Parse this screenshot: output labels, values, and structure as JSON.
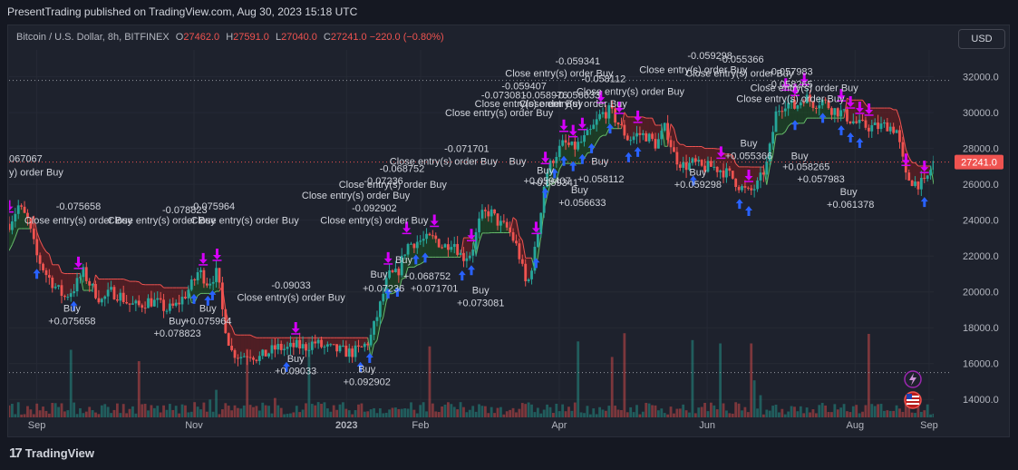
{
  "header": {
    "publish_line": "PresentTrading published on TradingView.com, Aug 30, 2023 15:18 UTC"
  },
  "legend": {
    "symbol": "Bitcoin / U.S. Dollar, 8h, BITFINEX",
    "o_key": "O",
    "o_val": "27462.0",
    "h_key": "H",
    "h_val": "27591.0",
    "l_key": "L",
    "l_val": "27040.0",
    "c_key": "C",
    "c_val": "27241.0",
    "change": "−220.0 (−0.80%)"
  },
  "toolbar": {
    "currency_label": "USD"
  },
  "footer": {
    "brand": "TradingView",
    "logo": "17"
  },
  "colors": {
    "up": "#26a69a",
    "down": "#ef5350",
    "bg": "#1e222d",
    "bull_band": "#1b5e20",
    "bear_band": "#8b1a1a",
    "signal": "#d500f9",
    "buy": "#2962ff"
  },
  "chart_data": {
    "type": "candlestick",
    "ylim": [
      13000,
      33500
    ],
    "y_ticks": [
      "32000.0",
      "30000.0",
      "28000.0",
      "26000.0",
      "24000.0",
      "22000.0",
      "20000.0",
      "18000.0",
      "16000.0",
      "14000.0"
    ],
    "x_labels": [
      {
        "label": "Sep",
        "t": 0.03
      },
      {
        "label": "Nov",
        "t": 0.2
      },
      {
        "label": "2023",
        "t": 0.365
      },
      {
        "label": "Feb",
        "t": 0.445
      },
      {
        "label": "Apr",
        "t": 0.595
      },
      {
        "label": "Jun",
        "t": 0.755
      },
      {
        "label": "Aug",
        "t": 0.915
      },
      {
        "label": "Sep",
        "t": 0.995
      }
    ],
    "last_price": "27241.0",
    "reference_lines": [
      31800,
      27241,
      15500
    ],
    "price_path": [
      [
        0.0,
        23800
      ],
      [
        0.01,
        24800
      ],
      [
        0.02,
        24000
      ],
      [
        0.03,
        22000
      ],
      [
        0.04,
        21000
      ],
      [
        0.05,
        20300
      ],
      [
        0.06,
        19700
      ],
      [
        0.07,
        20200
      ],
      [
        0.08,
        21100
      ],
      [
        0.09,
        20200
      ],
      [
        0.1,
        19500
      ],
      [
        0.11,
        20000
      ],
      [
        0.12,
        19800
      ],
      [
        0.13,
        19300
      ],
      [
        0.14,
        19200
      ],
      [
        0.15,
        19500
      ],
      [
        0.16,
        19400
      ],
      [
        0.17,
        19000
      ],
      [
        0.18,
        19200
      ],
      [
        0.19,
        19800
      ],
      [
        0.2,
        20600
      ],
      [
        0.205,
        21200
      ],
      [
        0.215,
        20500
      ],
      [
        0.225,
        21100
      ],
      [
        0.232,
        18500
      ],
      [
        0.24,
        16700
      ],
      [
        0.25,
        16400
      ],
      [
        0.26,
        16600
      ],
      [
        0.27,
        16300
      ],
      [
        0.28,
        16600
      ],
      [
        0.29,
        16900
      ],
      [
        0.3,
        16800
      ],
      [
        0.31,
        17000
      ],
      [
        0.32,
        16900
      ],
      [
        0.33,
        17200
      ],
      [
        0.34,
        16900
      ],
      [
        0.35,
        16800
      ],
      [
        0.36,
        16700
      ],
      [
        0.37,
        16600
      ],
      [
        0.38,
        16800
      ],
      [
        0.39,
        17300
      ],
      [
        0.4,
        19000
      ],
      [
        0.41,
        20900
      ],
      [
        0.42,
        21000
      ],
      [
        0.43,
        22600
      ],
      [
        0.44,
        22800
      ],
      [
        0.45,
        22900
      ],
      [
        0.46,
        23000
      ],
      [
        0.47,
        22500
      ],
      [
        0.48,
        22900
      ],
      [
        0.49,
        21900
      ],
      [
        0.5,
        22200
      ],
      [
        0.51,
        24200
      ],
      [
        0.52,
        24500
      ],
      [
        0.53,
        23800
      ],
      [
        0.54,
        23500
      ],
      [
        0.55,
        22400
      ],
      [
        0.56,
        20200
      ],
      [
        0.57,
        22600
      ],
      [
        0.58,
        26500
      ],
      [
        0.59,
        27600
      ],
      [
        0.6,
        28300
      ],
      [
        0.61,
        28000
      ],
      [
        0.62,
        28400
      ],
      [
        0.63,
        29000
      ],
      [
        0.64,
        29900
      ],
      [
        0.65,
        30100
      ],
      [
        0.66,
        29300
      ],
      [
        0.67,
        28500
      ],
      [
        0.68,
        28800
      ],
      [
        0.69,
        28700
      ],
      [
        0.7,
        28200
      ],
      [
        0.71,
        29200
      ],
      [
        0.72,
        27500
      ],
      [
        0.73,
        27000
      ],
      [
        0.74,
        27200
      ],
      [
        0.75,
        26900
      ],
      [
        0.76,
        27000
      ],
      [
        0.77,
        26800
      ],
      [
        0.78,
        26500
      ],
      [
        0.79,
        25900
      ],
      [
        0.8,
        25500
      ],
      [
        0.81,
        26000
      ],
      [
        0.82,
        27200
      ],
      [
        0.83,
        30100
      ],
      [
        0.84,
        30600
      ],
      [
        0.85,
        30300
      ],
      [
        0.86,
        30900
      ],
      [
        0.87,
        30500
      ],
      [
        0.88,
        30700
      ],
      [
        0.89,
        30200
      ],
      [
        0.9,
        30000
      ],
      [
        0.91,
        29600
      ],
      [
        0.92,
        29300
      ],
      [
        0.93,
        29200
      ],
      [
        0.94,
        29200
      ],
      [
        0.95,
        29300
      ],
      [
        0.96,
        29000
      ],
      [
        0.97,
        26400
      ],
      [
        0.98,
        26100
      ],
      [
        0.99,
        26000
      ],
      [
        1.0,
        27241
      ]
    ],
    "annotations": [
      {
        "text": "067067",
        "t": 0.0,
        "y": 27250,
        "anchor": "start"
      },
      {
        "text": "y) order Buy",
        "t": 0.0,
        "y": 26500,
        "anchor": "start"
      },
      {
        "text": "-0.075658",
        "t": 0.075,
        "y": 24600
      },
      {
        "text": "Close entry(s) order Buy",
        "t": 0.075,
        "y": 23800
      },
      {
        "text": "-0.078823",
        "t": 0.19,
        "y": 24400
      },
      {
        "text": "-0.075964",
        "t": 0.22,
        "y": 24600
      },
      {
        "text": "Close entry(s) order Buy",
        "t": 0.165,
        "y": 23800
      },
      {
        "text": "Close entry(s) order Buy",
        "t": 0.255,
        "y": 23800
      },
      {
        "text": "Buy",
        "t": 0.068,
        "y": 18900
      },
      {
        "text": "+0.075658",
        "t": 0.068,
        "y": 18200
      },
      {
        "text": "Buy",
        "t": 0.215,
        "y": 18900
      },
      {
        "text": "Buy",
        "t": 0.182,
        "y": 18200
      },
      {
        "text": "+0.075964",
        "t": 0.215,
        "y": 18200
      },
      {
        "text": "+0.078823",
        "t": 0.182,
        "y": 17500
      },
      {
        "text": "-0.09033",
        "t": 0.305,
        "y": 20200
      },
      {
        "text": "Close entry(s) order Buy",
        "t": 0.305,
        "y": 19500
      },
      {
        "text": "Buy",
        "t": 0.31,
        "y": 16100
      },
      {
        "text": "+0.09033",
        "t": 0.31,
        "y": 15400
      },
      {
        "text": "Buy",
        "t": 0.387,
        "y": 15500
      },
      {
        "text": "+0.092902",
        "t": 0.387,
        "y": 14800
      },
      {
        "text": "-0.071701",
        "t": 0.495,
        "y": 27800
      },
      {
        "text": "Close entry(s) order Buy",
        "t": 0.47,
        "y": 27100
      },
      {
        "text": "-0.068752",
        "t": 0.425,
        "y": 26700
      },
      {
        "text": "-0.07236",
        "t": 0.405,
        "y": 26000
      },
      {
        "text": "Close entry(s) order Buy",
        "t": 0.415,
        "y": 25800
      },
      {
        "text": "Close entry(s) order Buy",
        "t": 0.375,
        "y": 25200
      },
      {
        "text": "-0.092902",
        "t": 0.395,
        "y": 24500
      },
      {
        "text": "Close entry(s) order Buy",
        "t": 0.395,
        "y": 23800
      },
      {
        "text": "Buy",
        "t": 0.427,
        "y": 21600
      },
      {
        "text": "Buy",
        "t": 0.4,
        "y": 20800
      },
      {
        "text": "+0.068752",
        "t": 0.452,
        "y": 20700
      },
      {
        "text": "+0.07236",
        "t": 0.405,
        "y": 20000
      },
      {
        "text": "+0.071701",
        "t": 0.46,
        "y": 20000
      },
      {
        "text": "Buy",
        "t": 0.51,
        "y": 19900
      },
      {
        "text": "+0.073081",
        "t": 0.51,
        "y": 19200
      },
      {
        "text": "-0.059341",
        "t": 0.615,
        "y": 32700
      },
      {
        "text": "Close entry(s) order Buy",
        "t": 0.595,
        "y": 32000
      },
      {
        "text": "-0.058112",
        "t": 0.643,
        "y": 31700
      },
      {
        "text": "-0.059407",
        "t": 0.557,
        "y": 31300
      },
      {
        "text": "-0.073081",
        "t": 0.535,
        "y": 30800
      },
      {
        "text": "-0.058976",
        "t": 0.58,
        "y": 30800
      },
      {
        "text": "-0.056633",
        "t": 0.615,
        "y": 30800
      },
      {
        "text": "Close entry(s) order Buy",
        "t": 0.672,
        "y": 31000
      },
      {
        "text": "Close entry(s) order Buy",
        "t": 0.562,
        "y": 30300
      },
      {
        "text": "Close entry(s) order Buy",
        "t": 0.61,
        "y": 30300
      },
      {
        "text": "Close entry(s) order Buy",
        "t": 0.53,
        "y": 29800
      },
      {
        "text": "Buy",
        "t": 0.55,
        "y": 27100
      },
      {
        "text": "Buy",
        "t": 0.58,
        "y": 26600
      },
      {
        "text": "+0.059407",
        "t": 0.582,
        "y": 26000
      },
      {
        "text": "+0.059341",
        "t": 0.59,
        "y": 25900
      },
      {
        "text": "Buy",
        "t": 0.639,
        "y": 27100
      },
      {
        "text": "Buy",
        "t": 0.617,
        "y": 25500
      },
      {
        "text": "+0.058112",
        "t": 0.64,
        "y": 26100
      },
      {
        "text": "+0.056633",
        "t": 0.62,
        "y": 24800
      },
      {
        "text": "-0.059298",
        "t": 0.758,
        "y": 33000
      },
      {
        "text": "-0.055366",
        "t": 0.792,
        "y": 32800
      },
      {
        "text": "Close entry(s) order Buy",
        "t": 0.74,
        "y": 32200
      },
      {
        "text": "Close entry(s) order Buy",
        "t": 0.79,
        "y": 32000
      },
      {
        "text": "-0.057983",
        "t": 0.845,
        "y": 32100
      },
      {
        "text": "-0.058265",
        "t": 0.845,
        "y": 31400
      },
      {
        "text": "Close entry(s) order Buy",
        "t": 0.86,
        "y": 31200
      },
      {
        "text": "Close entry(s) order Buy",
        "t": 0.845,
        "y": 30600
      },
      {
        "text": "Buy",
        "t": 0.8,
        "y": 28100
      },
      {
        "text": "+0.055366",
        "t": 0.8,
        "y": 27400
      },
      {
        "text": "Buy",
        "t": 0.745,
        "y": 26500
      },
      {
        "text": "+0.059298",
        "t": 0.745,
        "y": 25800
      },
      {
        "text": "Buy",
        "t": 0.855,
        "y": 27400
      },
      {
        "text": "+0.058265",
        "t": 0.862,
        "y": 26800
      },
      {
        "text": "+0.057983",
        "t": 0.878,
        "y": 26100
      },
      {
        "text": "Buy",
        "t": 0.908,
        "y": 25400
      },
      {
        "text": "+0.061378",
        "t": 0.91,
        "y": 24700
      }
    ],
    "buy_markers": [
      0.03,
      0.07,
      0.2,
      0.215,
      0.22,
      0.3,
      0.38,
      0.39,
      0.41,
      0.42,
      0.44,
      0.45,
      0.49,
      0.5,
      0.57,
      0.58,
      0.59,
      0.6,
      0.61,
      0.62,
      0.63,
      0.65,
      0.67,
      0.68,
      0.74,
      0.79,
      0.8,
      0.85,
      0.88,
      0.9,
      0.91,
      0.92,
      0.99
    ],
    "close_markers": [
      0.0,
      0.075,
      0.21,
      0.225,
      0.31,
      0.41,
      0.43,
      0.46,
      0.5,
      0.57,
      0.58,
      0.6,
      0.61,
      0.62,
      0.64,
      0.66,
      0.68,
      0.77,
      0.8,
      0.84,
      0.85,
      0.86,
      0.9,
      0.91,
      0.92,
      0.93,
      0.97,
      0.99
    ]
  }
}
